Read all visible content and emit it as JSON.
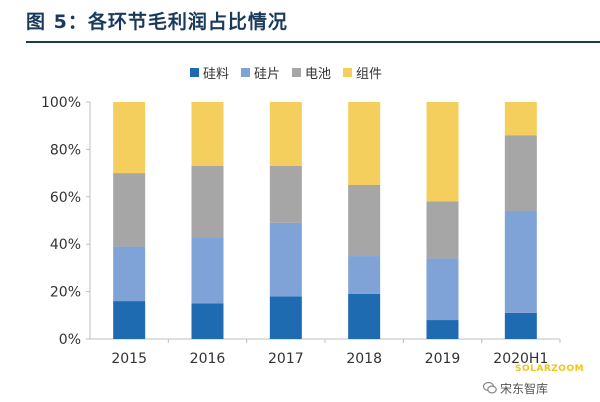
{
  "figure": {
    "title": "图 5：各环节毛利润占比情况"
  },
  "colors": {
    "title": "#1a3a5c",
    "axis": "#bfbfbf"
  },
  "chart_data": {
    "type": "bar",
    "stacked": true,
    "normalized_percent": true,
    "categories": [
      "2015",
      "2016",
      "2017",
      "2018",
      "2019",
      "2020H1"
    ],
    "series": [
      {
        "name": "硅料",
        "color": "#1f6bb1",
        "values": [
          16,
          15,
          18,
          19,
          8,
          11
        ]
      },
      {
        "name": "硅片",
        "color": "#7fa3d6",
        "values": [
          23,
          28,
          31,
          16,
          26,
          43
        ]
      },
      {
        "name": "电池",
        "color": "#a6a6a6",
        "values": [
          31,
          30,
          24,
          30,
          24,
          32
        ]
      },
      {
        "name": "组件",
        "color": "#f5cf5e",
        "values": [
          30,
          27,
          27,
          35,
          42,
          14
        ]
      }
    ],
    "ylim": [
      0,
      100
    ],
    "yticks": [
      "0%",
      "20%",
      "40%",
      "60%",
      "80%",
      "100%"
    ],
    "legend_position": "top",
    "grid": false
  },
  "watermark": {
    "text": "SOLARZOOM",
    "account": "宋东智库"
  }
}
